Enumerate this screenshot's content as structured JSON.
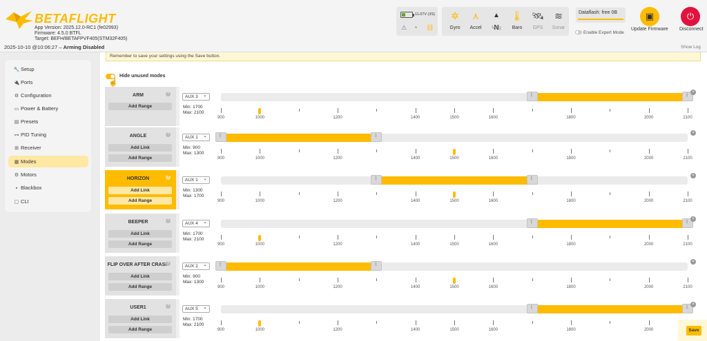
{
  "header": {
    "brand": "BETAFLIGHT",
    "app_version": "App Version: 2025.12.0-RC1 (fe02993)",
    "firmware": "Firmware: 4.5.0 BTFL",
    "target": "Target: BEFH/BETAFPVF405(STM32F405)",
    "datetime": "2025-10-10 @10:06:27 –",
    "arming": "Arming Disabled",
    "battery_text": "11.07V (3S)",
    "sensors": [
      {
        "label": "Gyro",
        "icon": "gyro-icon",
        "state": "on"
      },
      {
        "label": "Accel",
        "icon": "accel-icon",
        "state": "on"
      },
      {
        "label": "Mag",
        "icon": "mag-icon",
        "state": "off"
      },
      {
        "label": "Baro",
        "icon": "baro-icon",
        "state": "on"
      },
      {
        "label": "GPS",
        "icon": "gps-icon",
        "state": "off"
      },
      {
        "label": "Sonar",
        "icon": "sonar-icon",
        "state": "off"
      }
    ],
    "mag_letter": "N",
    "dataflash": "Dataflash: free 0B",
    "expert_mode": "Enable Expert Mode",
    "update_firmware": "Update Firmware",
    "disconnect": "Disconnect",
    "show_log": "Show Log"
  },
  "sidebar": {
    "items": [
      {
        "label": "Setup",
        "icon": "wrench-icon"
      },
      {
        "label": "Ports",
        "icon": "plug-icon"
      },
      {
        "label": "Configuration",
        "icon": "gear-icon"
      },
      {
        "label": "Power & Battery",
        "icon": "battery-icon"
      },
      {
        "label": "Presets",
        "icon": "presets-icon"
      },
      {
        "label": "PID Tuning",
        "icon": "pid-icon"
      },
      {
        "label": "Receiver",
        "icon": "receiver-icon"
      },
      {
        "label": "Modes",
        "icon": "modes-icon",
        "active": true
      },
      {
        "label": "Motors",
        "icon": "motors-icon"
      },
      {
        "label": "Blackbox",
        "icon": "blackbox-icon"
      },
      {
        "label": "CLI",
        "icon": "cli-icon"
      }
    ]
  },
  "content": {
    "notice": "Remember to save your settings using the Save button.",
    "hide_unused": "Hide unused modes",
    "add_range": "Add Range",
    "add_link": "Add Link",
    "help_glyph": "?",
    "remove_glyph": "×",
    "scale_min": 900,
    "scale_max": 2100,
    "tick_labels": [
      "900",
      "1000",
      "1200",
      "1400",
      "1500",
      "1600",
      "1800",
      "2000",
      "2100"
    ],
    "modes": [
      {
        "name": "ARM",
        "aux": "AUX 3",
        "min": "Min: 1700",
        "max": "Max: 2100",
        "range": [
          1700,
          2100
        ],
        "marker": 1000,
        "has_link": false,
        "active": false
      },
      {
        "name": "ANGLE",
        "aux": "AUX 1",
        "min": "Min: 900",
        "max": "Max: 1300",
        "range": [
          900,
          1300
        ],
        "marker": 1500,
        "has_link": true,
        "active": false
      },
      {
        "name": "HORIZON",
        "aux": "AUX 1",
        "min": "Min: 1300",
        "max": "Max: 1700",
        "range": [
          1300,
          1700
        ],
        "marker": 1500,
        "has_link": true,
        "active": true
      },
      {
        "name": "BEEPER",
        "aux": "AUX 4",
        "min": "Min: 1700",
        "max": "Max: 2100",
        "range": [
          1700,
          2100
        ],
        "marker": 1000,
        "has_link": true,
        "active": false
      },
      {
        "name": "FLIP OVER AFTER CRASH",
        "aux": "AUX 2",
        "min": "Min: 900",
        "max": "Max: 1300",
        "range": [
          900,
          1300
        ],
        "marker": 1500,
        "has_link": true,
        "active": false
      },
      {
        "name": "USER1",
        "aux": "AUX 5",
        "min": "Min: 1700",
        "max": "Max: 2100",
        "range": [
          1700,
          2100
        ],
        "marker": 1000,
        "has_link": true,
        "active": false
      }
    ],
    "save": "Save"
  },
  "colors": {
    "accent": "#ffbb00",
    "disconnect": "#e2123f",
    "active_nav": "#ffe8a3"
  }
}
